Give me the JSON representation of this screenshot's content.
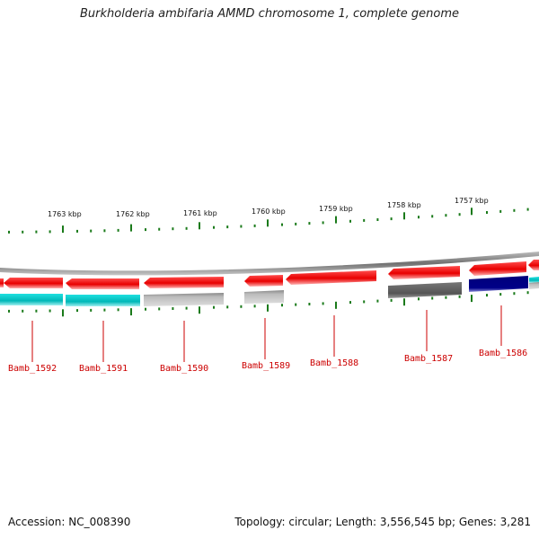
{
  "title": "Burkholderia ambifaria AMMD chromosome 1, complete genome",
  "colors": {
    "forward_genes": "#ff0000",
    "cds_cyan": "#00cccc",
    "cds_gray": "#aaaaaa",
    "cds_dark_gray": "#666666",
    "cds_navy": "#000088",
    "ticks": "#1a7a1a",
    "labels": "#cc0000",
    "backbone": "#888888"
  },
  "scale": {
    "unit": "kbp",
    "ticks": [
      {
        "label": "1763 kbp"
      },
      {
        "label": "1762 kbp"
      },
      {
        "label": "1761 kbp"
      },
      {
        "label": "1760 kbp"
      },
      {
        "label": "1759 kbp"
      },
      {
        "label": "1758 kbp"
      },
      {
        "label": "1757 kbp"
      }
    ]
  },
  "genes": [
    {
      "label": "Bamb_1592",
      "product_color": "cyan"
    },
    {
      "label": "Bamb_1591",
      "product_color": "cyan"
    },
    {
      "label": "Bamb_1590",
      "product_color": "gray"
    },
    {
      "label": "Bamb_1589",
      "product_color": "gray"
    },
    {
      "label": "Bamb_1588",
      "product_color": "none"
    },
    {
      "label": "Bamb_1587",
      "product_color": "dark-gray"
    },
    {
      "label": "Bamb_1586",
      "product_color": "navy"
    }
  ],
  "footer": {
    "accession": "Accession: NC_008390",
    "topology": "Topology: circular; Length: 3,556,545 bp; Genes: 3,281"
  }
}
